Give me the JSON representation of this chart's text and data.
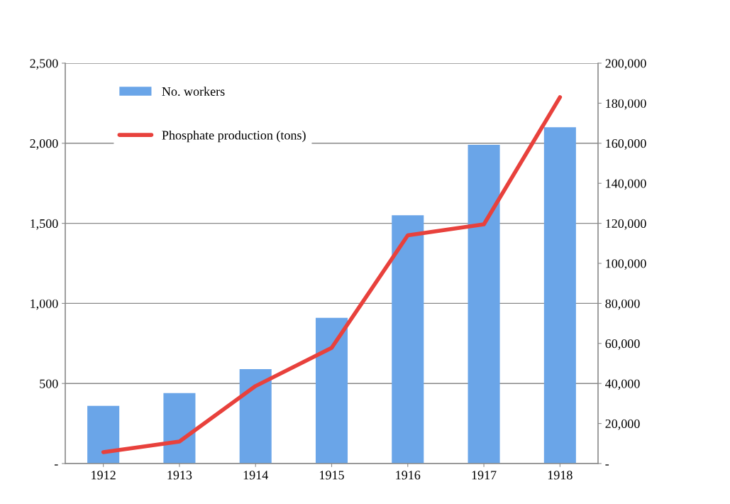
{
  "chart_data": {
    "type": "bar",
    "categories": [
      "1912",
      "1913",
      "1914",
      "1915",
      "1916",
      "1917",
      "1918"
    ],
    "series": [
      {
        "name": "No. workers",
        "color": "#6aa5e8",
        "values": [
          360,
          440,
          590,
          910,
          1550,
          1990,
          2100
        ]
      },
      {
        "name": "Phosphate production (tons)",
        "type": "line",
        "axis": "y2",
        "color": "#e8413c",
        "values": [
          5700,
          11000,
          38700,
          57800,
          114000,
          119500,
          183000
        ]
      }
    ],
    "ylim": [
      0,
      2500
    ],
    "yticks": [
      {
        "value": 0,
        "label": "-"
      },
      {
        "value": 500,
        "label": "500"
      },
      {
        "value": 1000,
        "label": "1,000"
      },
      {
        "value": 1500,
        "label": "1,500"
      },
      {
        "value": 2000,
        "label": "2,000"
      },
      {
        "value": 2500,
        "label": "2,500"
      }
    ],
    "y2lim": [
      0,
      200000
    ],
    "y2ticks": [
      {
        "value": 0,
        "label": "-"
      },
      {
        "value": 20000,
        "label": "20,000"
      },
      {
        "value": 40000,
        "label": "40,000"
      },
      {
        "value": 60000,
        "label": "60,000"
      },
      {
        "value": 80000,
        "label": "80,000"
      },
      {
        "value": 100000,
        "label": "100,000"
      },
      {
        "value": 120000,
        "label": "120,000"
      },
      {
        "value": 140000,
        "label": "140,000"
      },
      {
        "value": 160000,
        "label": "160,000"
      },
      {
        "value": 180000,
        "label": "180,000"
      },
      {
        "value": 200000,
        "label": "200,000"
      }
    ],
    "grid": "y",
    "legend": "top left",
    "marker": "none",
    "line_style": "solid"
  }
}
